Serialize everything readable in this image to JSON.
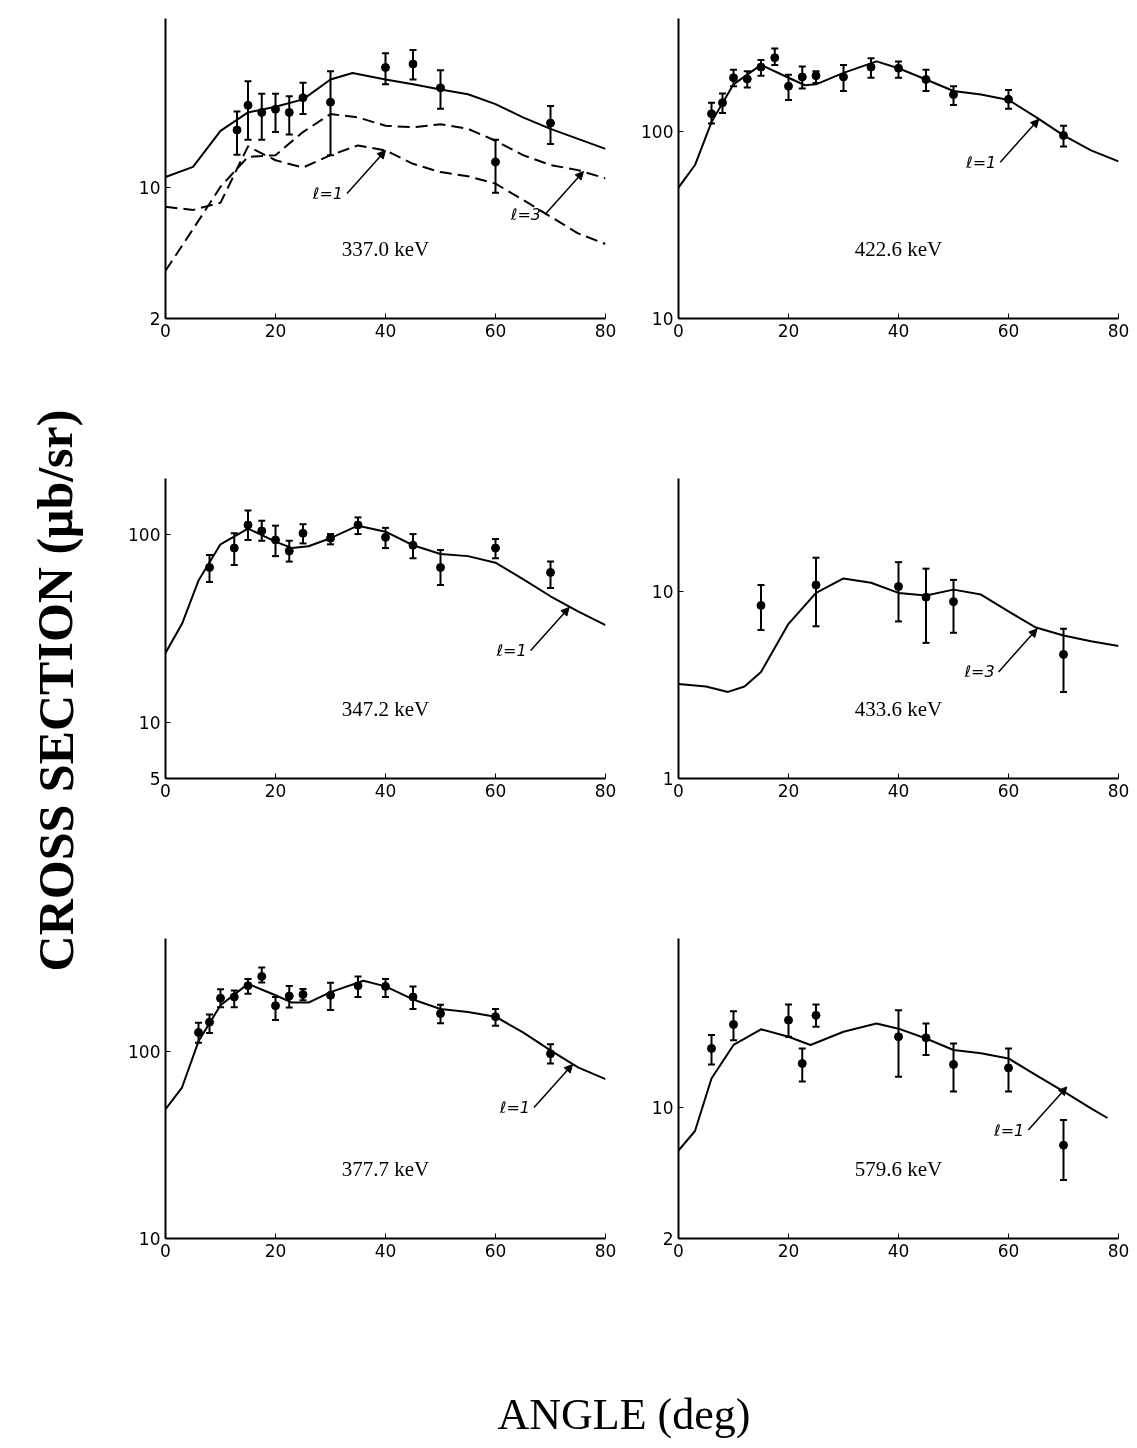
{
  "chart_data": [
    {
      "type": "scatter",
      "ylabel": "CROSS SECTION (μb/sr)",
      "xlabel": "ANGLE (deg)",
      "log": "y",
      "grid": false,
      "xlim": [
        0,
        80
      ],
      "xticks": [
        0,
        20,
        40,
        60,
        80
      ],
      "ylim": [
        2,
        80
      ],
      "yticks": [
        2,
        10
      ],
      "annotations": [
        "337.0 keV",
        {
          "text": "ℓ=1",
          "x": 40,
          "y": 15.8
        },
        {
          "text": "ℓ=3",
          "x": 76,
          "y": 12.2
        }
      ],
      "series": [
        {
          "marker": "circle",
          "color": "#000000",
          "x": [
            13,
            15,
            17.5,
            20,
            22.5,
            25,
            30,
            40,
            45,
            50,
            60,
            70
          ],
          "values": [
            20.3,
            27.5,
            25.2,
            26.2,
            25.2,
            30.2,
            28.6,
            43.8,
            45.7,
            34.1,
            13.7,
            22.1
          ],
          "errors": [
            [
              15,
              25.5
            ],
            [
              18,
              37
            ],
            [
              18,
              31.7
            ],
            [
              19.8,
              31.7
            ],
            [
              19.2,
              30.8
            ],
            [
              24.7,
              36.3
            ],
            [
              14.9,
              41.8
            ],
            [
              35.6,
              52.2
            ],
            [
              37.8,
              54.3
            ],
            [
              26.4,
              42.3
            ],
            [
              9.4,
              18
            ],
            [
              17.1,
              27.3
            ]
          ]
        },
        {
          "type": "line",
          "line_style": "solid",
          "color": "#000000",
          "x": [
            0,
            5,
            10,
            15,
            20,
            25,
            30,
            34,
            40,
            45,
            50,
            55,
            60,
            65,
            70,
            75,
            80
          ],
          "values": [
            11.4,
            12.9,
            20.1,
            25.2,
            27,
            29.6,
            37.8,
            40.9,
            37.8,
            35.6,
            33.4,
            31.5,
            27.9,
            23.7,
            20.6,
            18.2,
            16.1
          ]
        },
        {
          "type": "line",
          "line_style": "dashed",
          "color": "#000000",
          "x": [
            0,
            5,
            10,
            15,
            20,
            25,
            30,
            35,
            40,
            45,
            50,
            55,
            60,
            65,
            70,
            75,
            80
          ],
          "values": [
            3.6,
            6.0,
            10.1,
            14.6,
            14.9,
            19.8,
            24.7,
            23.7,
            21.4,
            21,
            21.8,
            20.6,
            17.8,
            14.9,
            13.2,
            12.4,
            11.2
          ]
        },
        {
          "type": "line",
          "line_style": "dashed",
          "color": "#000000",
          "x": [
            0,
            5,
            10,
            15,
            20,
            25,
            30,
            35,
            40,
            45,
            50,
            55,
            60,
            65,
            70,
            75,
            80
          ],
          "values": [
            7.9,
            7.6,
            8.3,
            16.6,
            14,
            12.8,
            14.9,
            16.8,
            15.8,
            13.4,
            12.1,
            11.5,
            10.5,
            8.6,
            7.0,
            5.7,
            5.0
          ]
        }
      ]
    },
    {
      "type": "scatter",
      "log": "y",
      "grid": false,
      "xlim": [
        0,
        80
      ],
      "xticks": [
        0,
        20,
        40,
        60,
        80
      ],
      "ylim": [
        10,
        400
      ],
      "yticks": [
        10,
        100
      ],
      "annotations": [
        "422.6 keV",
        {
          "text": "ℓ=1",
          "x": 65.5,
          "y": 116
        }
      ],
      "series": [
        {
          "marker": "circle",
          "color": "#000000",
          "x": [
            6,
            8,
            10,
            12.5,
            15,
            17.5,
            20,
            22.5,
            25,
            30,
            35,
            40,
            45,
            50,
            60,
            70
          ],
          "values": [
            124,
            142,
            193,
            190,
            220,
            247,
            174,
            195,
            198,
            195,
            220,
            217,
            189,
            157,
            148,
            95
          ],
          "errors": [
            [
              110,
              142
            ],
            [
              125,
              159
            ],
            [
              174,
              213
            ],
            [
              171,
              209
            ],
            [
              198,
              240
            ],
            [
              226,
              277
            ],
            [
              147,
              200
            ],
            [
              169,
              222
            ],
            [
              181,
              209
            ],
            [
              164,
              226
            ],
            [
              193,
              245
            ],
            [
              193,
              236
            ],
            [
              164,
              213
            ],
            [
              138,
              174
            ],
            [
              132,
              166
            ],
            [
              83,
              107
            ]
          ]
        },
        {
          "type": "line",
          "line_style": "solid",
          "color": "#000000",
          "x": [
            0,
            3,
            6,
            10,
            15,
            20,
            23,
            25,
            30,
            36,
            40,
            45,
            50,
            55,
            60,
            65,
            70,
            75,
            80
          ],
          "values": [
            50,
            66,
            112,
            178,
            226,
            193,
            176,
            178,
            205,
            236,
            217,
            189,
            164,
            157,
            147,
            119,
            95,
            79,
            69
          ]
        }
      ]
    },
    {
      "type": "scatter",
      "log": "y",
      "grid": false,
      "xlim": [
        0,
        80
      ],
      "xticks": [
        0,
        20,
        40,
        60,
        80
      ],
      "ylim": [
        5,
        200
      ],
      "yticks": [
        5,
        10,
        100
      ],
      "annotations": [
        "347.2 keV",
        {
          "text": "ℓ=1",
          "x": 73.4,
          "y": 41
        }
      ],
      "series": [
        {
          "marker": "circle",
          "color": "#000000",
          "x": [
            8,
            12.5,
            15,
            17.5,
            20,
            22.5,
            25,
            30,
            35,
            40,
            45,
            50,
            60,
            70
          ],
          "values": [
            67,
            85,
            113,
            105,
            94,
            82,
            102,
            96,
            113,
            97,
            88,
            67,
            85,
            63
          ],
          "errors": [
            [
              56,
              78
            ],
            [
              69,
              102
            ],
            [
              94,
              135
            ],
            [
              93,
              119
            ],
            [
              77,
              112
            ],
            [
              72,
              93
            ],
            [
              90,
              114
            ],
            [
              89,
              101
            ],
            [
              101,
              124
            ],
            [
              85,
              109
            ],
            [
              75,
              101
            ],
            [
              54,
              83
            ],
            [
              75,
              95
            ],
            [
              52,
              72
            ]
          ]
        },
        {
          "type": "line",
          "line_style": "solid",
          "color": "#000000",
          "x": [
            0,
            3,
            6,
            10,
            15,
            20,
            23,
            26,
            30,
            35,
            40,
            45,
            50,
            55,
            60,
            65,
            70,
            75,
            80
          ],
          "values": [
            23.4,
            33.5,
            57,
            89,
            108,
            92,
            85,
            87,
            96,
            112,
            104,
            88,
            79,
            77,
            71,
            58,
            47,
            39,
            33
          ]
        }
      ]
    },
    {
      "type": "scatter",
      "log": "y",
      "grid": false,
      "xlim": [
        0,
        80
      ],
      "xticks": [
        0,
        20,
        40,
        60,
        80
      ],
      "ylim": [
        1,
        40
      ],
      "yticks": [
        1,
        10
      ],
      "annotations": [
        "433.6 keV",
        {
          "text": "ℓ=3",
          "x": 65.2,
          "y": 6.3
        }
      ],
      "series": [
        {
          "marker": "circle",
          "color": "#000000",
          "x": [
            15,
            25,
            40,
            45,
            50,
            70
          ],
          "values": [
            8.4,
            10.8,
            10.6,
            9.3,
            8.8,
            4.6
          ],
          "errors": [
            [
              6.2,
              10.8
            ],
            [
              6.5,
              15.1
            ],
            [
              6.9,
              14.3
            ],
            [
              5.3,
              13.2
            ],
            [
              6.0,
              11.5
            ],
            [
              2.9,
              6.3
            ]
          ]
        },
        {
          "type": "line",
          "line_style": "solid",
          "color": "#000000",
          "x": [
            0,
            5,
            9,
            12,
            15,
            20,
            25,
            30,
            35,
            40,
            45,
            50,
            55,
            60,
            65,
            70,
            75,
            80
          ],
          "values": [
            3.2,
            3.1,
            2.9,
            3.1,
            3.7,
            6.7,
            9.8,
            11.7,
            11.1,
            9.8,
            9.5,
            10.2,
            9.6,
            7.8,
            6.4,
            5.8,
            5.4,
            5.1
          ]
        }
      ]
    },
    {
      "type": "scatter",
      "log": "y",
      "grid": false,
      "xlim": [
        0,
        80
      ],
      "xticks": [
        0,
        20,
        40,
        60,
        80
      ],
      "ylim": [
        10,
        400
      ],
      "yticks": [
        10,
        100
      ],
      "annotations": [
        "377.7 keV",
        {
          "text": "ℓ=1",
          "x": 74,
          "y": 85
        }
      ],
      "series": [
        {
          "marker": "circle",
          "color": "#000000",
          "x": [
            6,
            8,
            10,
            12.5,
            15,
            17.5,
            20,
            22.5,
            25,
            30,
            35,
            40,
            45,
            50,
            60,
            70
          ],
          "values": [
            126,
            143,
            192,
            195,
            224,
            251,
            175,
            197,
            201,
            199,
            224,
            222,
            195,
            159,
            153,
            97
          ],
          "errors": [
            [
              111,
              142
            ],
            [
              125,
              157
            ],
            [
              172,
              214
            ],
            [
              172,
              211
            ],
            [
              203,
              243
            ],
            [
              233,
              280
            ],
            [
              147,
              195
            ],
            [
              171,
              223
            ],
            [
              187,
              215
            ],
            [
              166,
              232
            ],
            [
              195,
              251
            ],
            [
              195,
              243
            ],
            [
              168,
              222
            ],
            [
              141,
              177
            ],
            [
              137,
              168
            ],
            [
              86,
              109
            ]
          ]
        },
        {
          "type": "line",
          "line_style": "solid",
          "color": "#000000",
          "x": [
            0,
            3,
            6,
            10,
            15,
            20,
            23,
            26,
            30,
            36,
            40,
            45,
            50,
            55,
            60,
            65,
            70,
            75,
            80
          ],
          "values": [
            49,
            64,
            113,
            176,
            229,
            199,
            182,
            182,
            207,
            238,
            222,
            189,
            168,
            162,
            153,
            126,
            101,
            82,
            71
          ]
        }
      ]
    },
    {
      "type": "scatter",
      "log": "y",
      "grid": false,
      "xlim": [
        0,
        80
      ],
      "xticks": [
        0,
        20,
        40,
        60,
        80
      ],
      "ylim": [
        2,
        80
      ],
      "yticks": [
        2,
        10
      ],
      "annotations": [
        "579.6 keV",
        {
          "text": "ℓ=1",
          "x": 70.6,
          "y": 12.9
        }
      ],
      "series": [
        {
          "marker": "circle",
          "color": "#000000",
          "x": [
            6,
            10,
            20,
            22.5,
            25,
            40,
            45,
            50,
            60,
            70
          ],
          "values": [
            20.7,
            27.8,
            29.3,
            17.2,
            31.1,
            23.9,
            23.6,
            17.0,
            16.3,
            6.3
          ],
          "errors": [
            [
              17.0,
              24.4
            ],
            [
              22.9,
              32.7
            ],
            [
              23.9,
              35.5
            ],
            [
              13.8,
              20.7
            ],
            [
              27.0,
              35.5
            ],
            [
              14.6,
              33.1
            ],
            [
              19.1,
              28.1
            ],
            [
              12.2,
              22.0
            ],
            [
              12.2,
              20.7
            ],
            [
              4.1,
              8.6
            ]
          ]
        },
        {
          "type": "line",
          "line_style": "solid",
          "color": "#000000",
          "x": [
            0,
            3,
            6,
            10,
            15,
            20,
            24,
            30,
            36,
            40,
            45,
            50,
            55,
            60,
            65,
            70,
            75,
            78
          ],
          "values": [
            5.9,
            7.5,
            14.3,
            21.6,
            26.2,
            23.9,
            21.6,
            25.4,
            28.1,
            26.4,
            23.4,
            20.3,
            19.5,
            18.3,
            14.9,
            12.2,
            9.9,
            8.8
          ]
        }
      ]
    }
  ]
}
